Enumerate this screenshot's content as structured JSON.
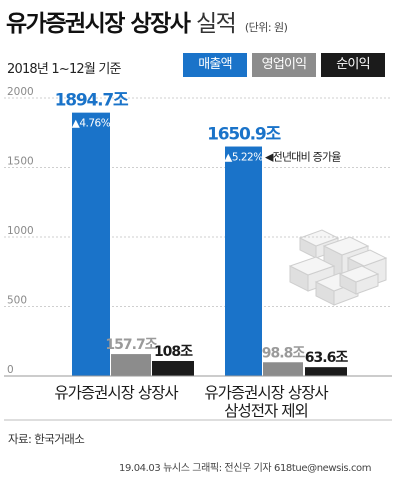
{
  "header": {
    "title": "유가증권시장 상장사",
    "title_sub": "실적",
    "unit": "(단위: 원)",
    "period": "2018년 1~12월 기준"
  },
  "legend": [
    "매출액",
    "영업이익",
    "순이익"
  ],
  "chart_data": {
    "type": "bar",
    "categories": [
      "유가증권시장 상장사",
      "유가증권시장 상장사 삼성전자 제외"
    ],
    "category_lines": [
      [
        "유가증권시장 상장사"
      ],
      [
        "유가증권시장 상장사",
        "삼성전자 제외"
      ]
    ],
    "series": [
      {
        "name": "매출액",
        "values": [
          1894.7,
          1650.9
        ],
        "labels": [
          "1894.7조",
          "1650.9조"
        ],
        "growth": [
          "(▲4.76%)",
          "(▲5.22%)"
        ],
        "color": "#1a73c9"
      },
      {
        "name": "영업이익",
        "values": [
          157.7,
          98.8
        ],
        "labels": [
          "157.7조",
          "98.8조"
        ],
        "color": "#8c8c8c"
      },
      {
        "name": "순이익",
        "values": [
          108,
          63.6
        ],
        "labels": [
          "108조",
          "63.6조"
        ],
        "color": "#1b1b1b"
      }
    ],
    "yticks": [
      0,
      500,
      1000,
      1500,
      2000
    ],
    "ylim": [
      0,
      2000
    ],
    "annotation": "◀전년대비 증가율",
    "grid": true
  },
  "source": "자료: 한국거래소",
  "credit": "19.04.03 뉴시스 그래픽: 전신우 기자 618tue@newsis.com"
}
